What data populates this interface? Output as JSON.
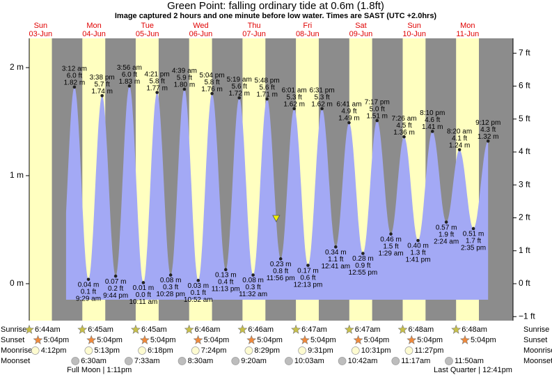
{
  "chart_data": {
    "type": "tide",
    "title": "Green Point: falling  ordinary tide at 0.6m (1.8ft)",
    "subtitle": "Image captured 2 hours and one minute before low water. Times are SAST (UTC +2.0hrs)",
    "xlim": [
      6.88,
      224.4
    ],
    "ylim": [
      -0.342,
      2.271
    ],
    "yticks": [
      {
        "value": 0,
        "label": "0 m"
      },
      {
        "value": 1,
        "label": "1 m"
      },
      {
        "value": 2,
        "label": "2 m"
      }
    ],
    "y2lim": [
      -1.122,
      7.451
    ],
    "y2ticks": [
      {
        "value": -1,
        "label": "−1 ft"
      },
      {
        "value": 0,
        "label": "0 ft"
      },
      {
        "value": 1,
        "label": "1 ft"
      },
      {
        "value": 2,
        "label": "2 ft"
      },
      {
        "value": 3,
        "label": "3 ft"
      },
      {
        "value": 4,
        "label": "4 ft"
      },
      {
        "value": 5,
        "label": "5 ft"
      },
      {
        "value": 6,
        "label": "6 ft"
      },
      {
        "value": 7,
        "label": "7 ft"
      }
    ],
    "now": {
      "x": 117.93,
      "height": 0.6
    },
    "rows": {
      "sunrise": "Sunrise",
      "sunset": "Sunset",
      "moonrise": "Moonrise",
      "moonset": "Moonset"
    },
    "days": [
      {
        "weekday": "Sun",
        "date": "03-Jun",
        "sunrise": "6:44am",
        "sunset": "5:04pm",
        "moonrise": "4:12pm"
      },
      {
        "weekday": "Mon",
        "date": "04-Jun",
        "sunrise": "6:45am",
        "sunset": "5:04pm",
        "moonrise": "5:13pm",
        "moonset": "6:30am",
        "phase": "Full Moon | 1:11pm",
        "tides": [
          {
            "time": "3:12 am",
            "height": 1.82,
            "label": "1.82 m",
            "ft": "6.0 ft"
          },
          {
            "time": "9:29 am",
            "height": 0.04,
            "label": "0.04 m",
            "ft": "0.1 ft"
          },
          {
            "time": "3:38 pm",
            "height": 1.74,
            "label": "1.74 m",
            "ft": "5.7 ft"
          },
          {
            "time": "9:44 pm",
            "height": 0.07,
            "label": "0.07 m",
            "ft": "0.2 ft"
          }
        ]
      },
      {
        "weekday": "Tue",
        "date": "05-Jun",
        "sunrise": "6:45am",
        "sunset": "5:04pm",
        "moonrise": "6:18pm",
        "moonset": "7:33am",
        "tides": [
          {
            "time": "3:56 am",
            "height": 1.83,
            "label": "1.83 m",
            "ft": "6.0 ft"
          },
          {
            "time": "10:11 am",
            "height": 0.01,
            "label": "0.01 m",
            "ft": "0.0 ft"
          },
          {
            "time": "4:21 pm",
            "height": 1.77,
            "label": "1.77 m",
            "ft": "5.8 ft"
          },
          {
            "time": "10:28 pm",
            "height": 0.08,
            "label": "0.08 m",
            "ft": "0.3 ft"
          }
        ]
      },
      {
        "weekday": "Wed",
        "date": "06-Jun",
        "sunrise": "6:46am",
        "sunset": "5:04pm",
        "moonrise": "7:24pm",
        "moonset": "8:30am",
        "tides": [
          {
            "time": "4:39 am",
            "height": 1.8,
            "label": "1.80 m",
            "ft": "5.9 ft"
          },
          {
            "time": "10:52 am",
            "height": 0.03,
            "label": "0.03 m",
            "ft": "0.1 ft"
          },
          {
            "time": "5:04 pm",
            "height": 1.76,
            "label": "1.76 m",
            "ft": "5.8 ft"
          },
          {
            "time": "11:13 pm",
            "height": 0.13,
            "label": "0.13 m",
            "ft": "0.4 ft"
          }
        ]
      },
      {
        "weekday": "Thu",
        "date": "07-Jun",
        "sunrise": "6:46am",
        "sunset": "5:04pm",
        "moonrise": "8:29pm",
        "moonset": "9:20am",
        "tides": [
          {
            "time": "5:19 am",
            "height": 1.72,
            "label": "1.72 m",
            "ft": "5.6 ft"
          },
          {
            "time": "11:32 am",
            "height": 0.08,
            "label": "0.08 m",
            "ft": "0.3 ft"
          },
          {
            "time": "5:48 pm",
            "height": 1.71,
            "label": "1.71 m",
            "ft": "5.6 ft"
          },
          {
            "time": "11:56 pm",
            "height": 0.23,
            "label": "0.23 m",
            "ft": "0.8 ft"
          }
        ]
      },
      {
        "weekday": "Fri",
        "date": "08-Jun",
        "sunrise": "6:47am",
        "sunset": "5:04pm",
        "moonrise": "9:31pm",
        "moonset": "10:03am",
        "tides": [
          {
            "time": "6:01 am",
            "height": 1.62,
            "label": "1.62 m",
            "ft": "5.3 ft"
          },
          {
            "time": "12:13 pm",
            "height": 0.17,
            "label": "0.17 m",
            "ft": "0.6 ft"
          },
          {
            "time": "6:31 pm",
            "height": 1.62,
            "label": "1.62 m",
            "ft": "5.3 ft"
          }
        ]
      },
      {
        "weekday": "Sat",
        "date": "09-Jun",
        "sunrise": "6:47am",
        "sunset": "5:04pm",
        "moonrise": "10:31pm",
        "moonset": "10:42am",
        "tides": [
          {
            "time": "12:41 am",
            "height": 0.34,
            "label": "0.34 m",
            "ft": "1.1 ft"
          },
          {
            "time": "6:41 am",
            "height": 1.49,
            "label": "1.49 m",
            "ft": "4.9 ft"
          },
          {
            "time": "12:55 pm",
            "height": 0.28,
            "label": "0.28 m",
            "ft": "0.9 ft"
          },
          {
            "time": "7:17 pm",
            "height": 1.51,
            "label": "1.51 m",
            "ft": "5.0 ft"
          }
        ]
      },
      {
        "weekday": "Sun",
        "date": "10-Jun",
        "sunrise": "6:48am",
        "sunset": "5:04pm",
        "moonrise": "11:27pm",
        "moonset": "11:17am",
        "tides": [
          {
            "time": "1:29 am",
            "height": 0.46,
            "label": "0.46 m",
            "ft": "1.5 ft"
          },
          {
            "time": "7:26 am",
            "height": 1.36,
            "label": "1.36 m",
            "ft": "4.5 ft"
          },
          {
            "time": "1:41 pm",
            "height": 0.4,
            "label": "0.40 m",
            "ft": "1.3 ft"
          },
          {
            "time": "8:10 pm",
            "height": 1.41,
            "label": "1.41 m",
            "ft": "4.6 ft"
          }
        ]
      },
      {
        "weekday": "Mon",
        "date": "11-Jun",
        "sunrise": "6:48am",
        "sunset": "5:04pm",
        "moonset": "11:50am",
        "phase": "Last Quarter | 12:41pm",
        "tides": [
          {
            "time": "2:24 am",
            "height": 0.57,
            "label": "0.57 m",
            "ft": "1.9 ft"
          },
          {
            "time": "8:20 am",
            "height": 1.24,
            "label": "1.24 m",
            "ft": "4.1 ft"
          },
          {
            "time": "2:35 pm",
            "height": 0.51,
            "label": "0.51 m",
            "ft": "1.7 ft"
          },
          {
            "time": "9:12 pm",
            "height": 1.32,
            "label": "1.32 m",
            "ft": "4.3 ft"
          }
        ]
      }
    ]
  }
}
